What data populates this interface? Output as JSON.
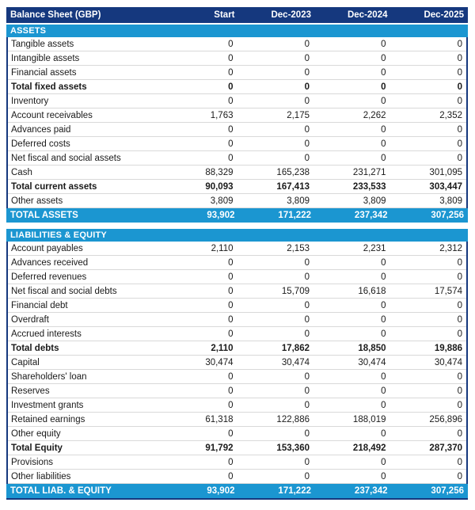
{
  "table": {
    "title": "Balance Sheet (GBP)",
    "columns": [
      "Start",
      "Dec-2023",
      "Dec-2024",
      "Dec-2025"
    ]
  },
  "colors": {
    "header_navy": "#15387E",
    "section_blue": "#1B96D1",
    "subtotal_navy": "#1A2E7E",
    "gridline": "#D9D9D9",
    "text": "#1A1A1A"
  },
  "sections": [
    {
      "name": "ASSETS",
      "rows": [
        {
          "label": "Tangible assets",
          "values": [
            "0",
            "0",
            "0",
            "0"
          ],
          "style": "normal"
        },
        {
          "label": "Intangible assets",
          "values": [
            "0",
            "0",
            "0",
            "0"
          ],
          "style": "normal"
        },
        {
          "label": "Financial assets",
          "values": [
            "0",
            "0",
            "0",
            "0"
          ],
          "style": "normal"
        },
        {
          "label": "Total fixed assets",
          "values": [
            "0",
            "0",
            "0",
            "0"
          ],
          "style": "subtotal"
        },
        {
          "label": "Inventory",
          "values": [
            "0",
            "0",
            "0",
            "0"
          ],
          "style": "normal"
        },
        {
          "label": "Account receivables",
          "values": [
            "1,763",
            "2,175",
            "2,262",
            "2,352"
          ],
          "style": "normal"
        },
        {
          "label": "Advances paid",
          "values": [
            "0",
            "0",
            "0",
            "0"
          ],
          "style": "normal"
        },
        {
          "label": "Deferred costs",
          "values": [
            "0",
            "0",
            "0",
            "0"
          ],
          "style": "normal"
        },
        {
          "label": "Net fiscal and social assets",
          "values": [
            "0",
            "0",
            "0",
            "0"
          ],
          "style": "normal"
        },
        {
          "label": "Cash",
          "values": [
            "88,329",
            "165,238",
            "231,271",
            "301,095"
          ],
          "style": "normal"
        },
        {
          "label": "Total current assets",
          "values": [
            "90,093",
            "167,413",
            "233,533",
            "303,447"
          ],
          "style": "subtotal"
        },
        {
          "label": "Other assets",
          "values": [
            "3,809",
            "3,809",
            "3,809",
            "3,809"
          ],
          "style": "normal"
        }
      ],
      "total": {
        "label": "TOTAL ASSETS",
        "values": [
          "93,902",
          "171,222",
          "237,342",
          "307,256"
        ]
      }
    },
    {
      "name": "LIABILITIES & EQUITY",
      "rows": [
        {
          "label": "Account payables",
          "values": [
            "2,110",
            "2,153",
            "2,231",
            "2,312"
          ],
          "style": "normal"
        },
        {
          "label": "Advances received",
          "values": [
            "0",
            "0",
            "0",
            "0"
          ],
          "style": "normal"
        },
        {
          "label": "Deferred revenues",
          "values": [
            "0",
            "0",
            "0",
            "0"
          ],
          "style": "normal"
        },
        {
          "label": "Net fiscal and social debts",
          "values": [
            "0",
            "15,709",
            "16,618",
            "17,574"
          ],
          "style": "normal"
        },
        {
          "label": "Financial debt",
          "values": [
            "0",
            "0",
            "0",
            "0"
          ],
          "style": "normal"
        },
        {
          "label": "Overdraft",
          "values": [
            "0",
            "0",
            "0",
            "0"
          ],
          "style": "normal"
        },
        {
          "label": "Accrued interests",
          "values": [
            "0",
            "0",
            "0",
            "0"
          ],
          "style": "normal"
        },
        {
          "label": "Total debts",
          "values": [
            "2,110",
            "17,862",
            "18,850",
            "19,886"
          ],
          "style": "subtotal"
        },
        {
          "label": "Capital",
          "values": [
            "30,474",
            "30,474",
            "30,474",
            "30,474"
          ],
          "style": "normal"
        },
        {
          "label": "Shareholders' loan",
          "values": [
            "0",
            "0",
            "0",
            "0"
          ],
          "style": "normal"
        },
        {
          "label": "Reserves",
          "values": [
            "0",
            "0",
            "0",
            "0"
          ],
          "style": "normal"
        },
        {
          "label": "Investment grants",
          "values": [
            "0",
            "0",
            "0",
            "0"
          ],
          "style": "normal"
        },
        {
          "label": "Retained earnings",
          "values": [
            "61,318",
            "122,886",
            "188,019",
            "256,896"
          ],
          "style": "normal"
        },
        {
          "label": "Other equity",
          "values": [
            "0",
            "0",
            "0",
            "0"
          ],
          "style": "normal"
        },
        {
          "label": "Total Equity",
          "values": [
            "91,792",
            "153,360",
            "218,492",
            "287,370"
          ],
          "style": "subtotal"
        },
        {
          "label": "Provisions",
          "values": [
            "0",
            "0",
            "0",
            "0"
          ],
          "style": "normal"
        },
        {
          "label": "Other liabilities",
          "values": [
            "0",
            "0",
            "0",
            "0"
          ],
          "style": "normal"
        }
      ],
      "total": {
        "label": "TOTAL LIAB. & EQUITY",
        "values": [
          "93,902",
          "171,222",
          "237,342",
          "307,256"
        ]
      }
    }
  ]
}
